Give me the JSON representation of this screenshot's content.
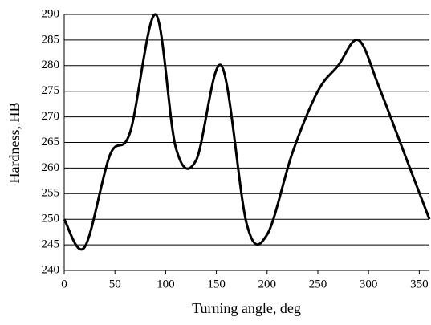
{
  "chart_data": {
    "type": "line",
    "x_label": "Turning angle, deg",
    "y_label": "Hardness, HB",
    "x": [
      0,
      20,
      45,
      65,
      90,
      110,
      130,
      155,
      180,
      200,
      225,
      250,
      270,
      290,
      310,
      335,
      360
    ],
    "series": [
      {
        "color": "#000000",
        "values": [
          250,
          244.5,
          262.5,
          267,
          290,
          264,
          261.5,
          280,
          249,
          247,
          263,
          275,
          280,
          285,
          276,
          263,
          250
        ]
      }
    ],
    "xlim": [
      0,
      360
    ],
    "xticks": [
      0,
      50,
      100,
      150,
      200,
      250,
      300,
      350
    ],
    "ylim": [
      240,
      290
    ],
    "yticks": [
      240,
      245,
      250,
      255,
      260,
      265,
      270,
      275,
      280,
      285,
      290
    ],
    "grid": true
  }
}
